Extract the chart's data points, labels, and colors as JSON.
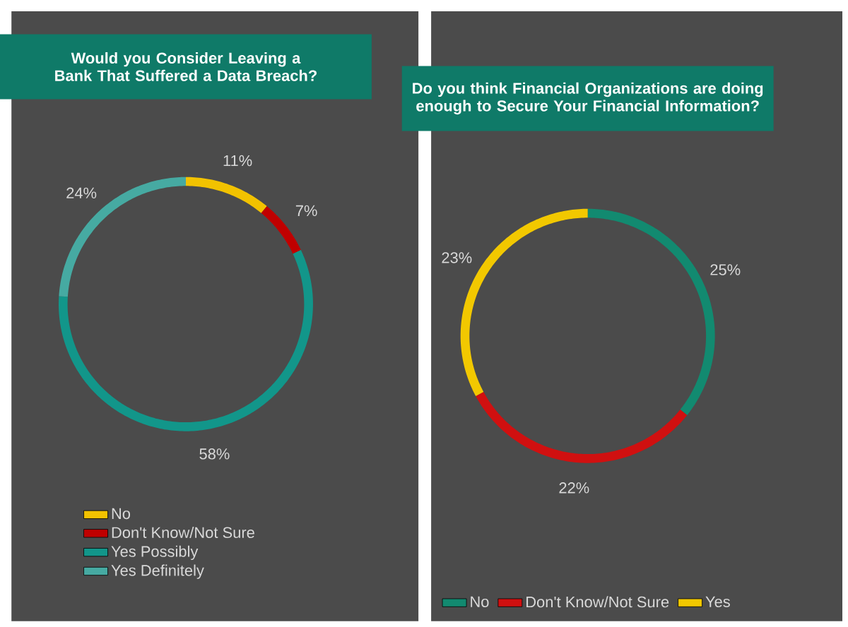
{
  "chart_data": [
    {
      "type": "donut",
      "title": "Would you Consider Leaving a Bank That Suffered a Data Breach?",
      "categories": [
        "No",
        "Don't Know/Not Sure",
        "Yes Possibly",
        "Yes Definitely"
      ],
      "values": [
        11,
        7,
        58,
        24
      ],
      "value_labels": [
        "11%",
        "7%",
        "58%",
        "24%"
      ],
      "colors": [
        "#f2c200",
        "#c00000",
        "#12968a",
        "#46aaa2"
      ],
      "legend": "bottom"
    },
    {
      "type": "donut",
      "title": "Do you think Financial Organizations are doing enough to  Secure Your Financial Information?",
      "categories": [
        "No",
        "Don't Know/Not Sure",
        "Yes"
      ],
      "values": [
        25,
        22,
        23
      ],
      "value_labels": [
        "25%",
        "22%",
        "23%"
      ],
      "colors": [
        "#128a70",
        "#d01010",
        "#f2c800"
      ],
      "legend": "bottom"
    }
  ]
}
